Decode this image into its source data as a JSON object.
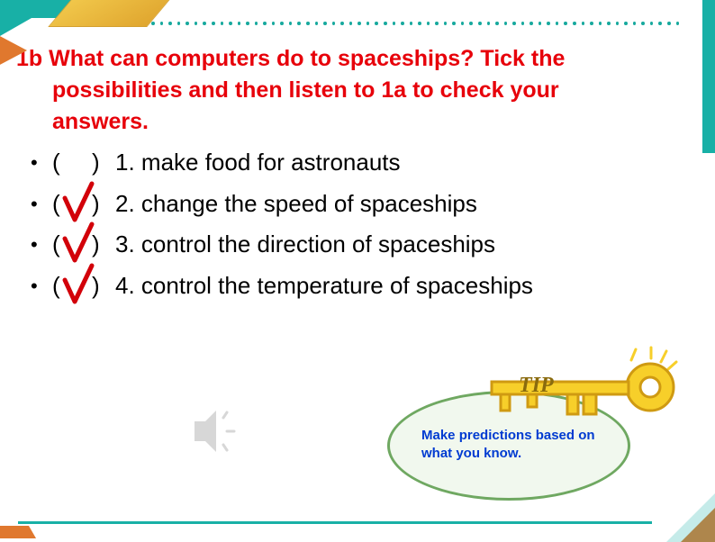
{
  "colors": {
    "heading": "#e7000a",
    "body": "#000000",
    "tip_text": "#003bd1",
    "accent_teal": "#18b0a6",
    "accent_orange": "#e0782e",
    "accent_gold": "#f2c94c",
    "ellipse_fill": "#f1f8ee",
    "ellipse_border": "#6fa861",
    "check_stroke": "#d20009",
    "key_fill": "#f7cf2a",
    "key_stroke": "#cf9a12"
  },
  "heading": {
    "prefix": "1b",
    "line1": "What can computers do to spaceships? Tick the",
    "line2": "possibilities and then listen to 1a to check your",
    "line3": "answers."
  },
  "items": [
    {
      "num": "1.",
      "text": "make food for astronauts",
      "checked": false
    },
    {
      "num": "2.",
      "text": "change the speed of spaceships",
      "checked": true
    },
    {
      "num": "3.",
      "text": "control the direction of spaceships",
      "checked": true
    },
    {
      "num": "4.",
      "text": "control the temperature of spaceships",
      "checked": true
    }
  ],
  "tip": {
    "label": "TIP",
    "text": "Make predictions based on what you know."
  },
  "typography": {
    "heading_fontsize": 25,
    "body_fontsize": 26,
    "tip_fontsize": 15
  }
}
